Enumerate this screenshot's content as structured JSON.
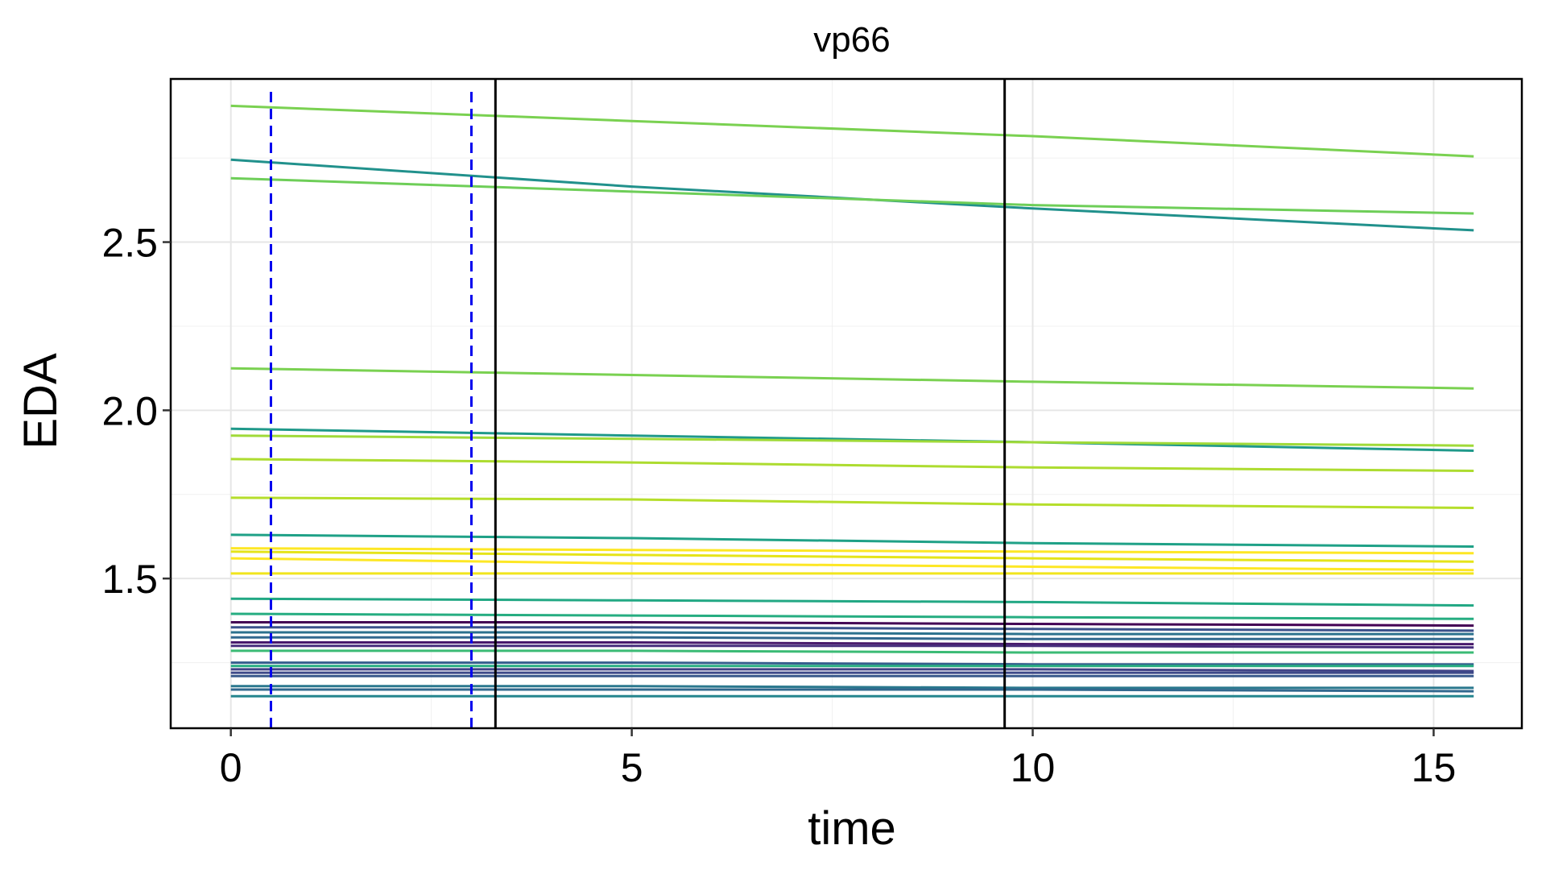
{
  "chart_data": {
    "type": "line",
    "title": "vp66",
    "xlabel": "time",
    "ylabel": "EDA",
    "xlim": [
      -0.75,
      16.1
    ],
    "ylim": [
      1.055,
      2.985
    ],
    "x_ticks": [
      0,
      5,
      10,
      15
    ],
    "y_ticks": [
      1.5,
      2.0,
      2.5
    ],
    "x_minor": [
      2.5,
      7.5,
      12.5
    ],
    "y_minor": [
      1.25,
      1.75,
      2.25,
      2.75
    ],
    "grid": true,
    "legend": "none",
    "vlines_solid": [
      3.3,
      9.65
    ],
    "vlines_dashed": [
      0.5,
      3.0
    ],
    "vline_dashed_color": "#0000ee",
    "vline_solid_color": "#000000",
    "x_points": [
      0,
      5,
      10,
      15.5
    ],
    "series": [
      {
        "color": "#7ad151",
        "values": [
          2.905,
          2.86,
          2.815,
          2.755
        ]
      },
      {
        "color": "#21918c",
        "values": [
          2.745,
          2.665,
          2.6,
          2.535
        ]
      },
      {
        "color": "#6ece58",
        "values": [
          2.69,
          2.65,
          2.61,
          2.585
        ]
      },
      {
        "color": "#7ad151",
        "values": [
          2.125,
          2.105,
          2.085,
          2.065
        ]
      },
      {
        "color": "#1f998a",
        "values": [
          1.945,
          1.925,
          1.905,
          1.88
        ]
      },
      {
        "color": "#a0da39",
        "values": [
          1.925,
          1.915,
          1.905,
          1.895
        ]
      },
      {
        "color": "#addc30",
        "values": [
          1.855,
          1.845,
          1.83,
          1.82
        ]
      },
      {
        "color": "#b5de2b",
        "values": [
          1.74,
          1.735,
          1.72,
          1.71
        ]
      },
      {
        "color": "#1fa187",
        "values": [
          1.63,
          1.62,
          1.605,
          1.595
        ]
      },
      {
        "color": "#fde725",
        "values": [
          1.59,
          1.585,
          1.58,
          1.575
        ]
      },
      {
        "color": "#e5e419",
        "values": [
          1.58,
          1.57,
          1.56,
          1.55
        ]
      },
      {
        "color": "#fde725",
        "values": [
          1.56,
          1.545,
          1.535,
          1.525
        ]
      },
      {
        "color": "#f1e51d",
        "values": [
          1.515,
          1.515,
          1.515,
          1.515
        ]
      },
      {
        "color": "#22a884",
        "values": [
          1.44,
          1.435,
          1.43,
          1.42
        ]
      },
      {
        "color": "#26ad81",
        "values": [
          1.395,
          1.39,
          1.385,
          1.38
        ]
      },
      {
        "color": "#440154",
        "values": [
          1.37,
          1.37,
          1.365,
          1.36
        ]
      },
      {
        "color": "#3b528b",
        "values": [
          1.355,
          1.355,
          1.35,
          1.345
        ]
      },
      {
        "color": "#2c728e",
        "values": [
          1.34,
          1.34,
          1.335,
          1.335
        ]
      },
      {
        "color": "#31688e",
        "values": [
          1.325,
          1.325,
          1.32,
          1.32
        ]
      },
      {
        "color": "#481a6c",
        "values": [
          1.31,
          1.31,
          1.305,
          1.305
        ]
      },
      {
        "color": "#472f7d",
        "values": [
          1.3,
          1.3,
          1.3,
          1.295
        ]
      },
      {
        "color": "#3bbb75",
        "values": [
          1.285,
          1.285,
          1.28,
          1.28
        ]
      },
      {
        "color": "#355f8d",
        "values": [
          1.25,
          1.25,
          1.245,
          1.245
        ]
      },
      {
        "color": "#27ad81",
        "values": [
          1.24,
          1.24,
          1.24,
          1.24
        ]
      },
      {
        "color": "#414487",
        "values": [
          1.23,
          1.23,
          1.23,
          1.225
        ]
      },
      {
        "color": "#3e4989",
        "values": [
          1.22,
          1.22,
          1.22,
          1.22
        ]
      },
      {
        "color": "#38598c",
        "values": [
          1.21,
          1.21,
          1.21,
          1.21
        ]
      },
      {
        "color": "#2a788e",
        "values": [
          1.18,
          1.18,
          1.175,
          1.175
        ]
      },
      {
        "color": "#31688e",
        "values": [
          1.17,
          1.17,
          1.17,
          1.165
        ]
      },
      {
        "color": "#25858e",
        "values": [
          1.15,
          1.15,
          1.15,
          1.15
        ]
      }
    ]
  }
}
